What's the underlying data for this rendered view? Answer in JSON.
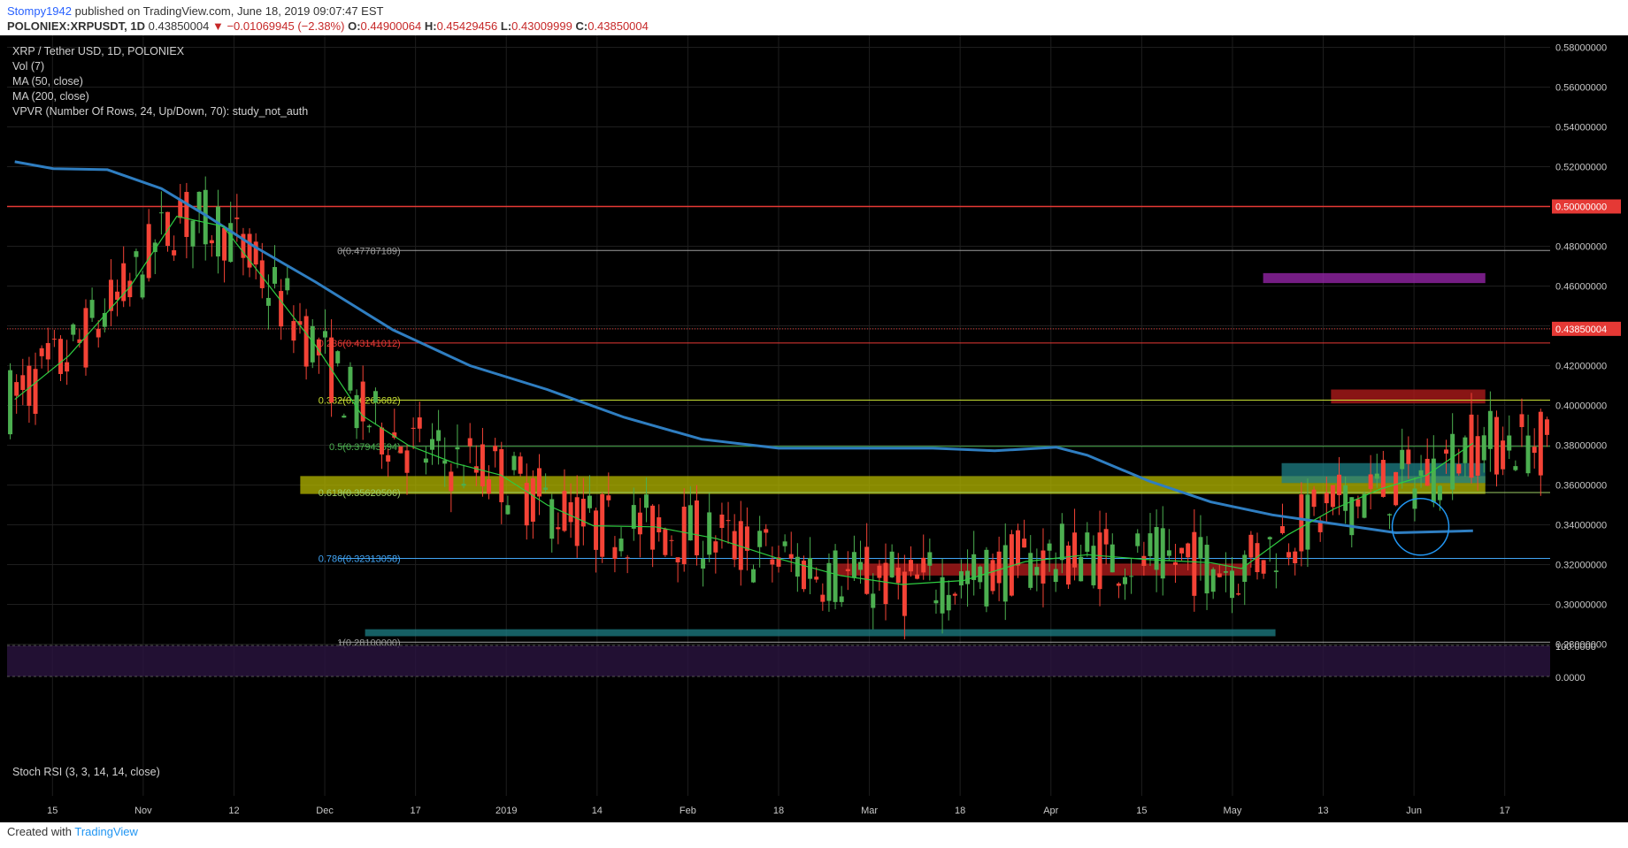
{
  "header": {
    "author": "Stompy1942",
    "published_text": "published on TradingView.com, June 18, 2019 09:07:47 EST",
    "symbol_line": "POLONIEX:XRPUSDT, 1D",
    "last_price": "0.43850004",
    "change": "▼ −0.01069945 (−2.38%)",
    "o_label": "O:",
    "o_value": "0.44900064",
    "h_label": "H:",
    "h_value": "0.45429456",
    "l_label": "L:",
    "l_value": "0.43009999",
    "c_label": "C:",
    "c_value": "0.43850004"
  },
  "legend": {
    "title": "XRP / Tether USD, 1D, POLONIEX",
    "vol": "Vol (7)",
    "ma50": "MA (50, close)",
    "ma200": "MA (200, close)",
    "vpvr": "VPVR (Number Of Rows, 24, Up/Down, 70): study_not_auth"
  },
  "stoch": {
    "label": "Stoch RSI (3, 3, 14, 14, close)",
    "ticks": [
      "100.0000",
      "0.0000"
    ]
  },
  "footer": {
    "created_with": "Created with",
    "brand": "TradingView"
  },
  "colors": {
    "bg": "#000000",
    "up": "#4caf50",
    "down": "#f44336",
    "ma200": "#2f7ec1",
    "ma50": "#2ecc40",
    "resistance": "#e53935",
    "price_label": "#e53935",
    "grid": "#1e1e1e"
  },
  "chart_data": {
    "type": "candlestick",
    "y_axis": {
      "range": [
        0.266,
        0.586
      ],
      "ticks": [
        "0.58000000",
        "0.56000000",
        "0.54000000",
        "0.52000000",
        "0.50000000",
        "0.48000000",
        "0.46000000",
        "0.44000000",
        "0.43850004",
        "0.42000000",
        "0.40000000",
        "0.38000000",
        "0.36000000",
        "0.34000000",
        "0.32000000",
        "0.30000000",
        "0.28000000"
      ]
    },
    "x_axis": {
      "ticks": [
        "15",
        "Nov",
        "12",
        "Dec",
        "17",
        "2019",
        "14",
        "Feb",
        "18",
        "Mar",
        "18",
        "Apr",
        "15",
        "May",
        "13",
        "Jun",
        "17"
      ]
    },
    "horizontal_lines": [
      {
        "label": "0.50000000",
        "value": 0.5,
        "color": "#e53935"
      },
      {
        "label": "0.43850004",
        "value": 0.4385,
        "color": "#e53935",
        "dotted": true
      }
    ],
    "fib_levels": [
      {
        "label": "0(0.47787189)",
        "value": 0.47787189,
        "color": "#9e9e9e"
      },
      {
        "label": "0.236(0.43141012)",
        "value": 0.43141012,
        "color": "#e53935"
      },
      {
        "label": "0.382(0.40266682)",
        "value": 0.40266682,
        "color": "#c8e033"
      },
      {
        "label": "0.5(0.37943594)",
        "value": 0.37943594,
        "color": "#4caf50"
      },
      {
        "label": "0.618(0.35620506)",
        "value": 0.35620506,
        "color": "#9ccc65"
      },
      {
        "label": "0.786(0.32313058)",
        "value": 0.32313058,
        "color": "#42a5f5"
      },
      {
        "label": "1(0.28100000)",
        "value": 0.281,
        "color": "#9e9e9e"
      }
    ],
    "zones": [
      {
        "name": "purple-resistance",
        "y": [
          0.4615,
          0.4665
        ],
        "x": [
          0.814,
          0.958
        ],
        "color": "#9c27b0"
      },
      {
        "name": "red-resistance",
        "y": [
          0.401,
          0.408
        ],
        "x": [
          0.858,
          0.958
        ],
        "color": "#b71c1c"
      },
      {
        "name": "yellow-support",
        "y": [
          0.3555,
          0.3645
        ],
        "x": [
          0.19,
          0.958
        ],
        "color": "#b5b800"
      },
      {
        "name": "teal-support",
        "y": [
          0.361,
          0.371
        ],
        "x": [
          0.826,
          0.958
        ],
        "color": "#1e7f86"
      },
      {
        "name": "red-band",
        "y": [
          0.3145,
          0.3205
        ],
        "x": [
          0.536,
          0.806
        ],
        "color": "#b71c1c"
      },
      {
        "name": "teal-band",
        "y": [
          0.284,
          0.2875
        ],
        "x": [
          0.232,
          0.822
        ],
        "color": "#1e7f86"
      }
    ],
    "ma200_points": [
      [
        0.005,
        0.5225
      ],
      [
        0.03,
        0.519
      ],
      [
        0.065,
        0.5185
      ],
      [
        0.1,
        0.509
      ],
      [
        0.13,
        0.495
      ],
      [
        0.16,
        0.48
      ],
      [
        0.2,
        0.462
      ],
      [
        0.25,
        0.438
      ],
      [
        0.3,
        0.42
      ],
      [
        0.35,
        0.408
      ],
      [
        0.4,
        0.394
      ],
      [
        0.45,
        0.383
      ],
      [
        0.5,
        0.3785
      ],
      [
        0.55,
        0.3785
      ],
      [
        0.6,
        0.3785
      ],
      [
        0.64,
        0.3772
      ],
      [
        0.68,
        0.379
      ],
      [
        0.7,
        0.375
      ],
      [
        0.74,
        0.362
      ],
      [
        0.78,
        0.3515
      ],
      [
        0.82,
        0.345
      ],
      [
        0.86,
        0.3405
      ],
      [
        0.9,
        0.336
      ],
      [
        0.95,
        0.337
      ]
    ],
    "ma50_points": [
      [
        0.005,
        0.403
      ],
      [
        0.04,
        0.425
      ],
      [
        0.08,
        0.46
      ],
      [
        0.11,
        0.495
      ],
      [
        0.14,
        0.49
      ],
      [
        0.17,
        0.46
      ],
      [
        0.2,
        0.43
      ],
      [
        0.23,
        0.395
      ],
      [
        0.26,
        0.38
      ],
      [
        0.29,
        0.371
      ],
      [
        0.32,
        0.365
      ],
      [
        0.35,
        0.35
      ],
      [
        0.38,
        0.3395
      ],
      [
        0.42,
        0.339
      ],
      [
        0.46,
        0.333
      ],
      [
        0.5,
        0.323
      ],
      [
        0.54,
        0.3145
      ],
      [
        0.58,
        0.31
      ],
      [
        0.62,
        0.312
      ],
      [
        0.66,
        0.3215
      ],
      [
        0.7,
        0.325
      ],
      [
        0.74,
        0.3225
      ],
      [
        0.78,
        0.321
      ],
      [
        0.8,
        0.318
      ],
      [
        0.83,
        0.335
      ],
      [
        0.86,
        0.348
      ],
      [
        0.89,
        0.358
      ],
      [
        0.92,
        0.365
      ],
      [
        0.95,
        0.381
      ]
    ],
    "candles": []
  }
}
